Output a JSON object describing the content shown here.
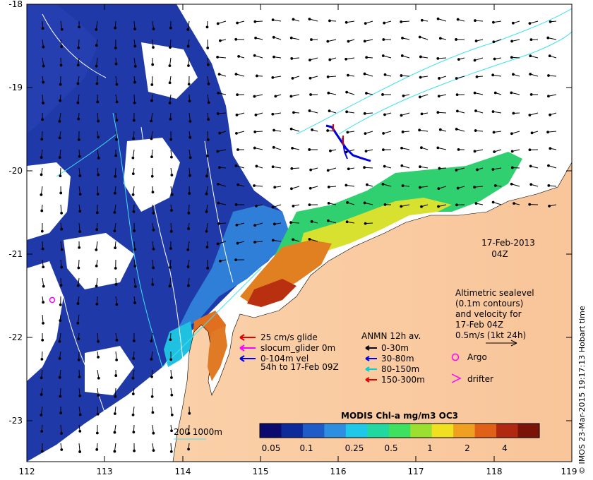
{
  "lon_ticks": [
    "112",
    "113",
    "114",
    "115",
    "116",
    "117",
    "118",
    "119"
  ],
  "lat_ticks": [
    "-18",
    "-19",
    "-20",
    "-21",
    "-22",
    "-23"
  ],
  "date_label": "17-Feb-2013",
  "time_label": "04Z",
  "altimetry_note": [
    "Altimetric sealevel",
    "(0.1m contours)",
    "and velocity for",
    "17-Feb 04Z",
    "0.5m/s (1kt 24h)"
  ],
  "glider_legend": {
    "items": [
      {
        "text": "25 cm/s glide",
        "color": "#e00000"
      },
      {
        "text": "slocum_glider 0m",
        "color": "#ff00ff"
      },
      {
        "text": "0-104m vel",
        "color": "#0000e0"
      }
    ],
    "period": "54h to 17-Feb 09Z"
  },
  "anmn_legend": {
    "title": "ANMN 12h av.",
    "items": [
      {
        "text": "0-30m",
        "color": "#000000"
      },
      {
        "text": "30-80m",
        "color": "#0000e0"
      },
      {
        "text": "80-150m",
        "color": "#00d0d0"
      },
      {
        "text": "150-300m",
        "color": "#e00000"
      }
    ]
  },
  "argo_label": "Argo",
  "drifter_label": "drifter",
  "bathy_label": "200  1000m",
  "colorbar": {
    "title": "MODIS Chl-a mg/m3 OC3",
    "tick_labels": [
      "0.05",
      "0.1",
      "0.25",
      "0.5",
      "1",
      "2",
      "4"
    ],
    "colors": [
      "#0a0a6e",
      "#0c2a9a",
      "#1f5cc8",
      "#2e8fe0",
      "#20c8e8",
      "#20d8a0",
      "#3ee060",
      "#9be030",
      "#f0e020",
      "#f0a020",
      "#e06018",
      "#b02810",
      "#7a1408"
    ]
  },
  "credit": "© IMOS 23-Mar-2015 19:17:13 Hobart time",
  "colors": {
    "land": "#f9c9a0",
    "ocean_low": "#1f3fb0",
    "contour": "#40e0f0"
  }
}
